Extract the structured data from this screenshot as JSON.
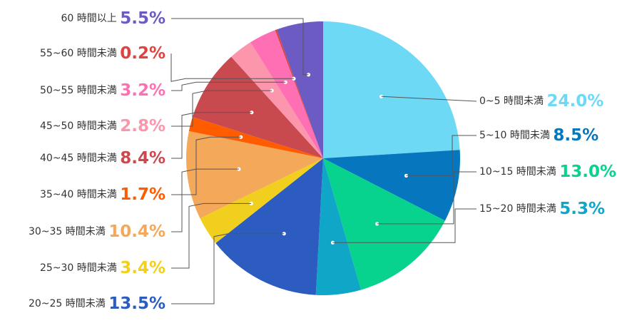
{
  "chart_data": {
    "type": "pie",
    "start_angle_deg": 0,
    "direction": "clockwise",
    "slices": [
      {
        "label": "0~5 時間未満",
        "value": 24.0,
        "value_label": "24.0%",
        "color": "#6DD9F5",
        "label_side": "right"
      },
      {
        "label": "5~10 時間未満",
        "value": 8.5,
        "value_label": "8.5%",
        "color": "#0676BE",
        "label_side": "right"
      },
      {
        "label": "10~15 時間未満",
        "value": 13.0,
        "value_label": "13.0%",
        "color": "#08D38E",
        "label_side": "right"
      },
      {
        "label": "15~20 時間未満",
        "value": 5.3,
        "value_label": "5.3%",
        "color": "#0FA6C7",
        "label_side": "right"
      },
      {
        "label": "20~25 時間未満",
        "value": 13.5,
        "value_label": "13.5%",
        "color": "#2D5CC1",
        "label_side": "left"
      },
      {
        "label": "25~30 時間未満",
        "value": 3.4,
        "value_label": "3.4%",
        "color": "#F1CF1E",
        "label_side": "left"
      },
      {
        "label": "30~35 時間未満",
        "value": 10.4,
        "value_label": "10.4%",
        "color": "#F4A85A",
        "label_side": "left"
      },
      {
        "label": "35~40 時間未満",
        "value": 1.7,
        "value_label": "1.7%",
        "color": "#FF5C00",
        "label_side": "left"
      },
      {
        "label": "40~45 時間未満",
        "value": 8.4,
        "value_label": "8.4%",
        "color": "#C94A4E",
        "label_side": "left"
      },
      {
        "label": "45~50 時間未満",
        "value": 2.8,
        "value_label": "2.8%",
        "color": "#FB96AC",
        "label_side": "left"
      },
      {
        "label": "50~55 時間未満",
        "value": 3.2,
        "value_label": "3.2%",
        "color": "#FF6FB4",
        "label_side": "left"
      },
      {
        "label": "55~60 時間未満",
        "value": 0.2,
        "value_label": "0.2%",
        "color": "#E0433E",
        "label_side": "left"
      },
      {
        "label": "60 時間以上",
        "value": 5.5,
        "value_label": "5.5%",
        "color": "#6B5BC2",
        "label_side": "left"
      }
    ],
    "value_label_colors": [
      "#6DD9F5",
      "#0676BE",
      "#08D38E",
      "#0FA6C7",
      "#2D5CC1",
      "#F1CF1E",
      "#F4A85A",
      "#FF5C00",
      "#C94A4E",
      "#FB96AC",
      "#FF6FB4",
      "#E0433E",
      "#6B5BC2"
    ],
    "leader_line_color": "#555555",
    "legend": "none"
  }
}
